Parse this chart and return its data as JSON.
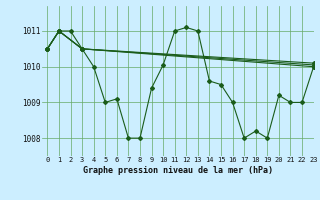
{
  "title": "Graphe pression niveau de la mer (hPa)",
  "bg_color": "#cceeff",
  "grid_color": "#66aa66",
  "line_color": "#1a5c1a",
  "xlim": [
    -0.5,
    23
  ],
  "ylim": [
    1007.5,
    1011.7
  ],
  "yticks": [
    1008,
    1009,
    1010,
    1011
  ],
  "xticks": [
    0,
    1,
    2,
    3,
    4,
    5,
    6,
    7,
    8,
    9,
    10,
    11,
    12,
    13,
    14,
    15,
    16,
    17,
    18,
    19,
    20,
    21,
    22,
    23
  ],
  "series": [
    {
      "x": [
        0,
        1,
        2,
        3,
        4,
        5,
        6,
        7,
        8,
        9,
        10,
        11,
        12,
        13,
        14,
        15,
        16,
        17,
        18,
        19,
        20,
        21,
        22,
        23
      ],
      "y": [
        1010.5,
        1011.0,
        1011.0,
        1010.5,
        1010.0,
        1009.0,
        1009.1,
        1008.0,
        1008.0,
        1009.4,
        1010.05,
        1011.0,
        1011.1,
        1011.0,
        1009.6,
        1009.5,
        1009.0,
        1008.0,
        1008.2,
        1008.0,
        1009.2,
        1009.0,
        1009.0,
        1010.0
      ]
    },
    {
      "x": [
        0,
        1,
        3,
        23
      ],
      "y": [
        1010.5,
        1011.0,
        1010.5,
        1010.0
      ]
    },
    {
      "x": [
        0,
        1,
        3,
        23
      ],
      "y": [
        1010.5,
        1011.0,
        1010.5,
        1010.1
      ]
    },
    {
      "x": [
        0,
        1,
        3,
        23
      ],
      "y": [
        1010.5,
        1011.0,
        1010.5,
        1010.05
      ]
    }
  ]
}
